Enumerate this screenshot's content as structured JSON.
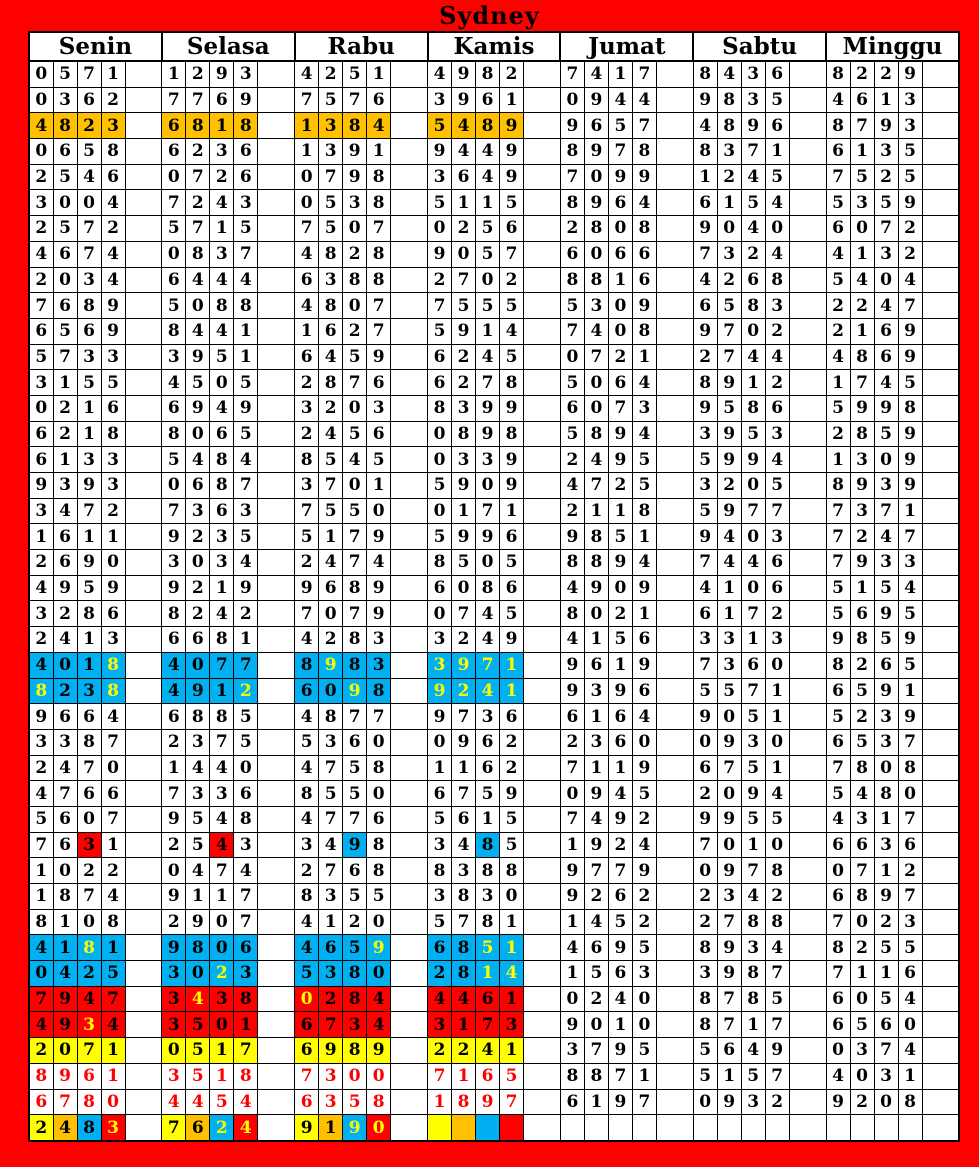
{
  "title": "Sydney",
  "days": [
    "Senin",
    "Selasa",
    "Rabu",
    "Kamis",
    "Jumat",
    "Sabtu",
    "Minggu"
  ],
  "palette": {
    "Y": "#FFFF00",
    "O": "#FFC000",
    "B": "#00B0F0",
    "R": "#FF0000"
  },
  "frame_color": "#FE0000",
  "grid_color": "#000000",
  "rows": [
    {
      "values": [
        "0571",
        "1293",
        "4251",
        "4982",
        "7417",
        "8436",
        "8229"
      ]
    },
    {
      "values": [
        "0362",
        "7769",
        "7576",
        "3961",
        "0944",
        "9835",
        "4613"
      ]
    },
    {
      "values": [
        "4823",
        "6818",
        "1384",
        "5489",
        "9657",
        "4896",
        "8793"
      ],
      "bg": [
        "O",
        "O",
        "O",
        "O",
        null,
        null,
        null
      ]
    },
    {
      "values": [
        "0658",
        "6236",
        "1391",
        "9449",
        "8978",
        "8371",
        "6135"
      ]
    },
    {
      "values": [
        "2546",
        "0726",
        "0798",
        "3649",
        "7099",
        "1245",
        "7525"
      ]
    },
    {
      "values": [
        "3004",
        "7243",
        "0538",
        "5115",
        "8964",
        "6154",
        "5359"
      ]
    },
    {
      "values": [
        "2572",
        "5715",
        "7507",
        "0256",
        "2808",
        "9040",
        "6072"
      ]
    },
    {
      "values": [
        "4674",
        "0837",
        "4828",
        "9057",
        "6066",
        "7324",
        "4132"
      ]
    },
    {
      "values": [
        "2034",
        "6444",
        "6388",
        "2702",
        "8816",
        "4268",
        "5404"
      ]
    },
    {
      "values": [
        "7689",
        "5088",
        "4807",
        "7555",
        "5309",
        "6583",
        "2247"
      ]
    },
    {
      "values": [
        "6569",
        "8441",
        "1627",
        "5914",
        "7408",
        "9702",
        "2169"
      ]
    },
    {
      "values": [
        "5733",
        "3951",
        "6459",
        "6245",
        "0721",
        "2744",
        "4869"
      ]
    },
    {
      "values": [
        "3155",
        "4505",
        "2876",
        "6278",
        "5064",
        "8912",
        "1745"
      ]
    },
    {
      "values": [
        "0216",
        "6949",
        "3203",
        "8399",
        "6073",
        "9586",
        "5998"
      ]
    },
    {
      "values": [
        "6218",
        "8065",
        "2456",
        "0898",
        "5894",
        "3953",
        "2859"
      ]
    },
    {
      "values": [
        "6133",
        "5484",
        "8545",
        "0339",
        "2495",
        "5994",
        "1309"
      ]
    },
    {
      "values": [
        "9393",
        "0687",
        "3701",
        "5909",
        "4725",
        "3205",
        "8939"
      ]
    },
    {
      "values": [
        "3472",
        "7363",
        "7550",
        "0171",
        "2118",
        "5977",
        "7371"
      ]
    },
    {
      "values": [
        "1611",
        "9235",
        "5179",
        "5996",
        "9851",
        "9403",
        "7247"
      ]
    },
    {
      "values": [
        "2690",
        "3034",
        "2474",
        "8505",
        "8894",
        "7446",
        "7933"
      ]
    },
    {
      "values": [
        "4959",
        "9219",
        "9689",
        "6086",
        "4909",
        "4106",
        "5154"
      ]
    },
    {
      "values": [
        "3286",
        "8242",
        "7079",
        "0745",
        "8021",
        "6172",
        "5695"
      ]
    },
    {
      "values": [
        "2413",
        "6681",
        "4283",
        "3249",
        "4156",
        "3313",
        "9859"
      ]
    },
    {
      "values": [
        "4018",
        "4077",
        "8983",
        "3971",
        "9619",
        "7360",
        "8265"
      ],
      "bg": [
        "B",
        "B",
        "B",
        "B",
        null,
        null,
        null
      ],
      "fg": [
        [
          "",
          "",
          "",
          "Y"
        ],
        null,
        [
          "",
          "Y",
          "",
          ""
        ],
        "Y",
        null,
        null,
        null
      ]
    },
    {
      "values": [
        "8238",
        "4912",
        "6098",
        "9241",
        "9396",
        "5571",
        "6591"
      ],
      "bg": [
        "B",
        "B",
        "B",
        "B",
        null,
        null,
        null
      ],
      "fg": [
        [
          "Y",
          "",
          "",
          "Y"
        ],
        [
          "",
          "",
          "",
          "Y"
        ],
        [
          "",
          "",
          "Y",
          ""
        ],
        "Y",
        null,
        null,
        null
      ]
    },
    {
      "values": [
        "9664",
        "6885",
        "4877",
        "9736",
        "6164",
        "9051",
        "5239"
      ]
    },
    {
      "values": [
        "3387",
        "2375",
        "5360",
        "0962",
        "2360",
        "0930",
        "6537"
      ]
    },
    {
      "values": [
        "2470",
        "1440",
        "4758",
        "1162",
        "7119",
        "6751",
        "7808"
      ]
    },
    {
      "values": [
        "4766",
        "7336",
        "8550",
        "6759",
        "0945",
        "2094",
        "5480"
      ]
    },
    {
      "values": [
        "5607",
        "9548",
        "4776",
        "5615",
        "7492",
        "9955",
        "4317"
      ]
    },
    {
      "values": [
        "7631",
        "2543",
        "3498",
        "3485",
        "1924",
        "7010",
        "6636"
      ],
      "bg": [
        [
          "",
          "",
          "R",
          ""
        ],
        [
          "",
          "",
          "R",
          ""
        ],
        [
          "",
          "",
          "B",
          ""
        ],
        [
          "",
          "",
          "B",
          ""
        ],
        null,
        null,
        null
      ]
    },
    {
      "values": [
        "1022",
        "0474",
        "2768",
        "8388",
        "9779",
        "0978",
        "0712"
      ]
    },
    {
      "values": [
        "1874",
        "9117",
        "8355",
        "3830",
        "9262",
        "2342",
        "6897"
      ]
    },
    {
      "values": [
        "8108",
        "2907",
        "4120",
        "5781",
        "1452",
        "2788",
        "7023"
      ]
    },
    {
      "values": [
        "4181",
        "9806",
        "4659",
        "6851",
        "4695",
        "8934",
        "8255"
      ],
      "bg": [
        "B",
        "B",
        "B",
        "B",
        null,
        null,
        null
      ],
      "fg": [
        [
          "",
          "",
          "Y",
          ""
        ],
        null,
        [
          "",
          "",
          "",
          "Y"
        ],
        [
          "",
          "",
          "Y",
          "Y"
        ],
        null,
        null,
        null
      ]
    },
    {
      "values": [
        "0425",
        "3023",
        "5380",
        "2814",
        "1563",
        "3987",
        "7116"
      ],
      "bg": [
        "B",
        "B",
        "B",
        "B",
        null,
        null,
        null
      ],
      "fg": [
        null,
        [
          "",
          "",
          "Y",
          ""
        ],
        null,
        [
          "",
          "",
          "Y",
          "Y"
        ],
        null,
        null,
        null
      ]
    },
    {
      "values": [
        "7947",
        "3438",
        "0284",
        "4461",
        "0240",
        "8785",
        "6054"
      ],
      "bg": [
        "R",
        "R",
        "R",
        "R",
        null,
        null,
        null
      ],
      "fg": [
        null,
        [
          "",
          "Y",
          "",
          ""
        ],
        [
          "Y",
          "",
          "",
          ""
        ],
        null,
        null,
        null,
        null
      ]
    },
    {
      "values": [
        "4934",
        "3501",
        "6734",
        "3173",
        "9010",
        "8717",
        "6560"
      ],
      "bg": [
        "R",
        "R",
        "R",
        "R",
        null,
        null,
        null
      ],
      "fg": [
        [
          "",
          "",
          "Y",
          ""
        ],
        null,
        null,
        null,
        null,
        null,
        null
      ]
    },
    {
      "values": [
        "2071",
        "0517",
        "6989",
        "2241",
        "3795",
        "5649",
        "0374"
      ],
      "bg": [
        "Y",
        "Y",
        "Y",
        "Y",
        null,
        null,
        null
      ]
    },
    {
      "values": [
        "8961",
        "3518",
        "7300",
        "7165",
        "8871",
        "5157",
        "4031"
      ],
      "fg": [
        "R",
        "R",
        "R",
        "R",
        null,
        null,
        null
      ]
    },
    {
      "values": [
        "6780",
        "4454",
        "6358",
        "1897",
        "6197",
        "0932",
        "9208"
      ],
      "fg": [
        "R",
        "R",
        "R",
        "R",
        null,
        null,
        null
      ]
    },
    {
      "values": [
        "2483",
        "7624",
        "9190",
        "",
        "",
        "",
        ""
      ],
      "bg": [
        [
          "Y",
          "O",
          "B",
          "R"
        ],
        [
          "Y",
          "O",
          "B",
          "R"
        ],
        [
          "Y",
          "O",
          "B",
          "R"
        ],
        [
          "Y",
          "O",
          "B",
          "R"
        ],
        null,
        null,
        null
      ],
      "fg": [
        [
          "",
          "",
          "",
          "Y"
        ],
        [
          "",
          "",
          "Y",
          "Y"
        ],
        [
          "",
          "",
          "Y",
          "Y"
        ],
        null,
        null,
        null,
        null
      ]
    }
  ]
}
